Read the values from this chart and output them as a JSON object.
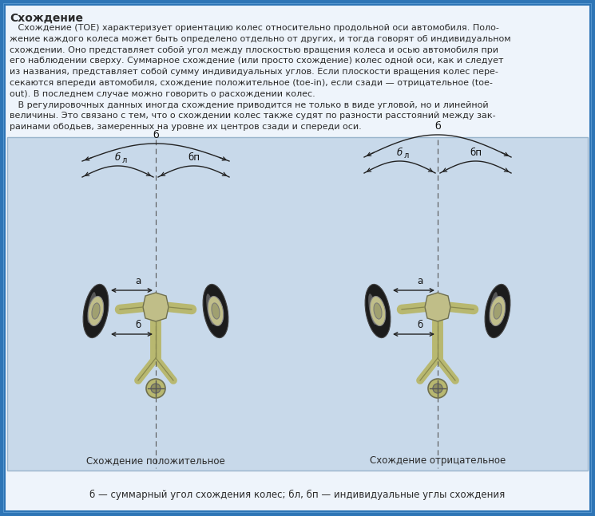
{
  "bg_outer": "#5a9bd3",
  "bg_inner": "#dce9f5",
  "bg_diagram": "#c8d9ea",
  "border_color": "#2e75b6",
  "text_color": "#2a2a2a",
  "title": "Схождение",
  "body_lines": [
    "   Схождение (TOE) характеризует ориентацию колес относительно продольной оси автомобиля. Поло-",
    "жение каждого колеса может быть определено отдельно от других, и тогда говорят об индивидуальном",
    "схождении. Оно представляет собой угол между плоскостью вращения колеса и осью автомобиля при",
    "его наблюдении сверху. Суммарное схождение (или просто схождение) колес одной оси, как и следует",
    "из названия, представляет собой сумму индивидуальных углов. Если плоскости вращения колес пере-",
    "секаются впереди автомобиля, схождение положительное (toe-in), если сзади — отрицательное (toe-",
    "out). В последнем случае можно говорить о расхождении колес.",
    "   В регулировочных данных иногда схождение приводится не только в виде угловой, но и линейной",
    "величины. Это связано с тем, что о схождении колес также судят по разности расстояний между зак-",
    "раинами ободьев, замеренных на уровне их центров сзади и спереди оси."
  ],
  "caption_left": "Схождение положительное",
  "caption_right": "Схождение отрицательное",
  "bottom_text": "б — суммарный угол схождения колес; бл, бп — индивидуальные углы схождения",
  "fig_width": 7.45,
  "fig_height": 6.47,
  "dpi": 100,
  "wheel_color_dark": "#1c1c1c",
  "wheel_color_rim": "#c0be90",
  "wheel_color_hub": "#a0a080",
  "susp_color_main": "#b8b870",
  "susp_color_edge": "#888850"
}
